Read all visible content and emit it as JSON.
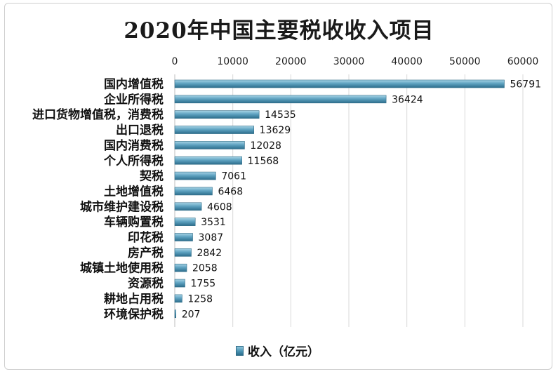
{
  "chart_data": {
    "type": "bar",
    "orientation": "horizontal",
    "title": "2020年中国主要税收收入项目",
    "categories": [
      "国内增值税",
      "企业所得税",
      "进口货物增值税，消费税",
      "出口退税",
      "国内消费税",
      "个人所得税",
      "契税",
      "土地增值税",
      "城市维护建设税",
      "车辆购置税",
      "印花税",
      "房产税",
      "城镇土地使用税",
      "资源税",
      "耕地占用税",
      "环境保护税"
    ],
    "series": [
      {
        "name": "收入（亿元）",
        "values": [
          56791,
          36424,
          14535,
          13629,
          12028,
          11568,
          7061,
          6468,
          4608,
          3531,
          3087,
          2842,
          2058,
          1755,
          1258,
          207
        ],
        "labels": [
          "56791",
          "36424",
          "14535",
          "13629",
          "12028",
          "11568",
          "7061",
          "6468",
          "4608",
          "3531",
          "3087",
          "2842",
          "2058",
          "1755",
          "1258",
          "207"
        ]
      }
    ],
    "xlim": [
      0,
      60000
    ],
    "xticks": [
      "0",
      "10000",
      "20000",
      "30000",
      "40000",
      "50000",
      "60000"
    ],
    "xaxis_position": "top",
    "grid": "vertical",
    "legend_position": "bottom-center",
    "bar_color": "#4a93b3",
    "grid_color": "#d9d9d9"
  }
}
